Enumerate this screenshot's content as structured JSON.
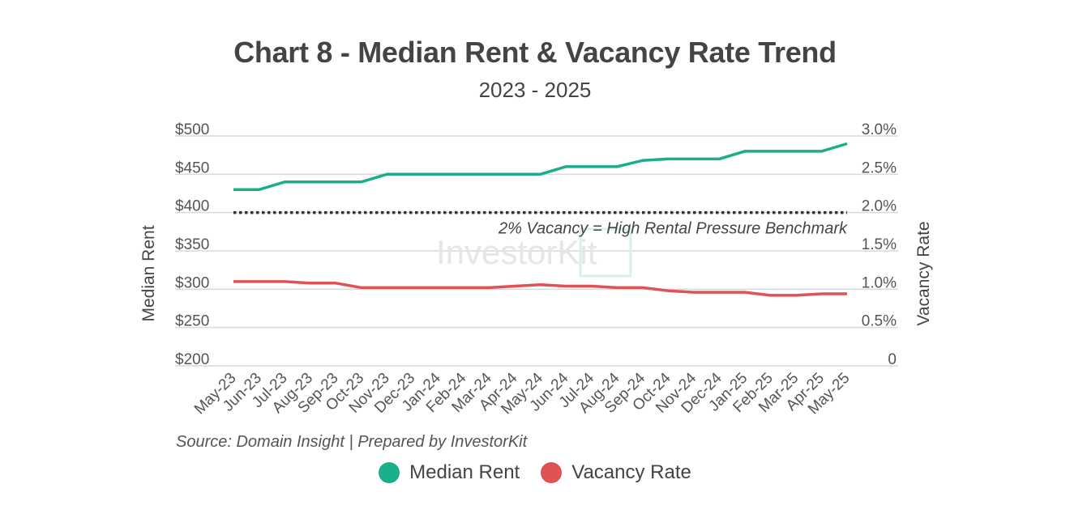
{
  "chart_data": {
    "type": "line",
    "title": "Chart 8 - Median Rent & Vacancy Rate Trend",
    "subtitle": "2023 - 2025",
    "source": "Source: Domain Insight | Prepared by InvestorKit",
    "watermark": "InvestorKit",
    "categories": [
      "May-23",
      "Jun-23",
      "Jul-23",
      "Aug-23",
      "Sep-23",
      "Oct-23",
      "Nov-23",
      "Dec-23",
      "Jan-24",
      "Feb-24",
      "Mar-24",
      "Apr-24",
      "May-24",
      "Jun-24",
      "Jul-24",
      "Aug-24",
      "Sep-24",
      "Oct-24",
      "Nov-24",
      "Dec-24",
      "Jan-25",
      "Feb-25",
      "Mar-25",
      "Apr-25",
      "May-25"
    ],
    "y_left": {
      "label": "Median Rent",
      "range": [
        200,
        500
      ],
      "ticks": [
        "$200",
        "$250",
        "$300",
        "$350",
        "$400",
        "$450",
        "$500"
      ]
    },
    "y_right": {
      "label": "Vacancy Rate",
      "range": [
        0,
        3.0
      ],
      "ticks": [
        "0",
        "0.5%",
        "1.0%",
        "1.5%",
        "2.0%",
        "2.5%",
        "3.0%"
      ]
    },
    "series": [
      {
        "name": "Median Rent",
        "axis": "left",
        "color": "#1aaf8b",
        "values": [
          430,
          430,
          440,
          440,
          440,
          440,
          450,
          450,
          450,
          450,
          450,
          450,
          450,
          460,
          460,
          460,
          468,
          470,
          470,
          470,
          480,
          480,
          480,
          480,
          490
        ]
      },
      {
        "name": "Vacancy Rate",
        "axis": "right",
        "color": "#e05254",
        "values": [
          1.1,
          1.1,
          1.1,
          1.08,
          1.08,
          1.02,
          1.02,
          1.02,
          1.02,
          1.02,
          1.02,
          1.04,
          1.06,
          1.04,
          1.04,
          1.02,
          1.02,
          0.98,
          0.96,
          0.96,
          0.96,
          0.92,
          0.92,
          0.94,
          0.94
        ]
      }
    ],
    "benchmark": {
      "axis": "right",
      "value": 2.0,
      "label": "2% Vacancy = High Rental Pressure Benchmark",
      "color": "#333333"
    },
    "grid": true,
    "legend_position": "bottom-center"
  }
}
